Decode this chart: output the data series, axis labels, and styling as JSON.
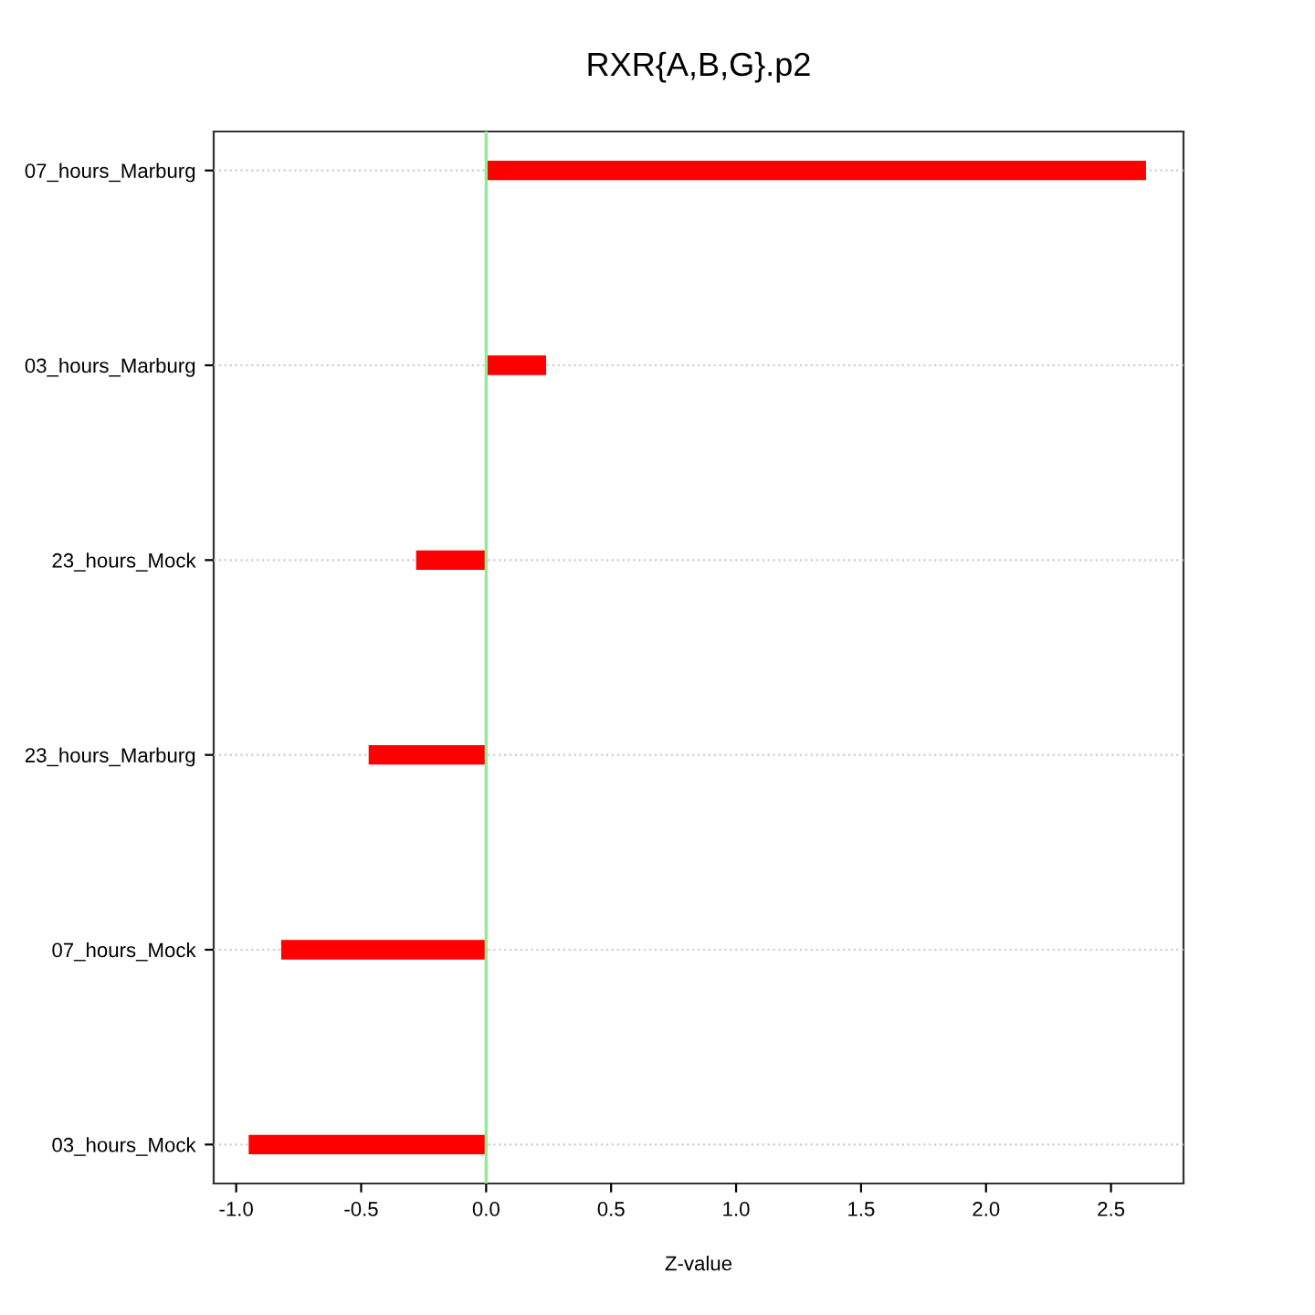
{
  "chart_data": {
    "type": "bar",
    "orientation": "horizontal",
    "title": "RXR{A,B,G}.p2",
    "xlabel": "Z-value",
    "categories": [
      "07_hours_Marburg",
      "03_hours_Marburg",
      "23_hours_Mock",
      "23_hours_Marburg",
      "07_hours_Mock",
      "03_hours_Mock"
    ],
    "values": [
      2.64,
      0.24,
      -0.28,
      -0.47,
      -0.82,
      -0.95
    ],
    "color": "#ff0000",
    "xlim": [
      -1.09,
      2.79
    ],
    "xticks": [
      {
        "value": -1,
        "label": "-1.0"
      },
      {
        "value": -0.5,
        "label": "-0.5"
      },
      {
        "value": 0,
        "label": "0.0"
      },
      {
        "value": 0.5,
        "label": "0.5"
      },
      {
        "value": 1,
        "label": "1.0"
      },
      {
        "value": 1.5,
        "label": "1.5"
      },
      {
        "value": 2,
        "label": "2.0"
      },
      {
        "value": 2.5,
        "label": "2.5"
      }
    ],
    "ref_lines": [
      {
        "axis": "x",
        "value": 0,
        "color": "#90ee90"
      }
    ],
    "grid": "y"
  }
}
